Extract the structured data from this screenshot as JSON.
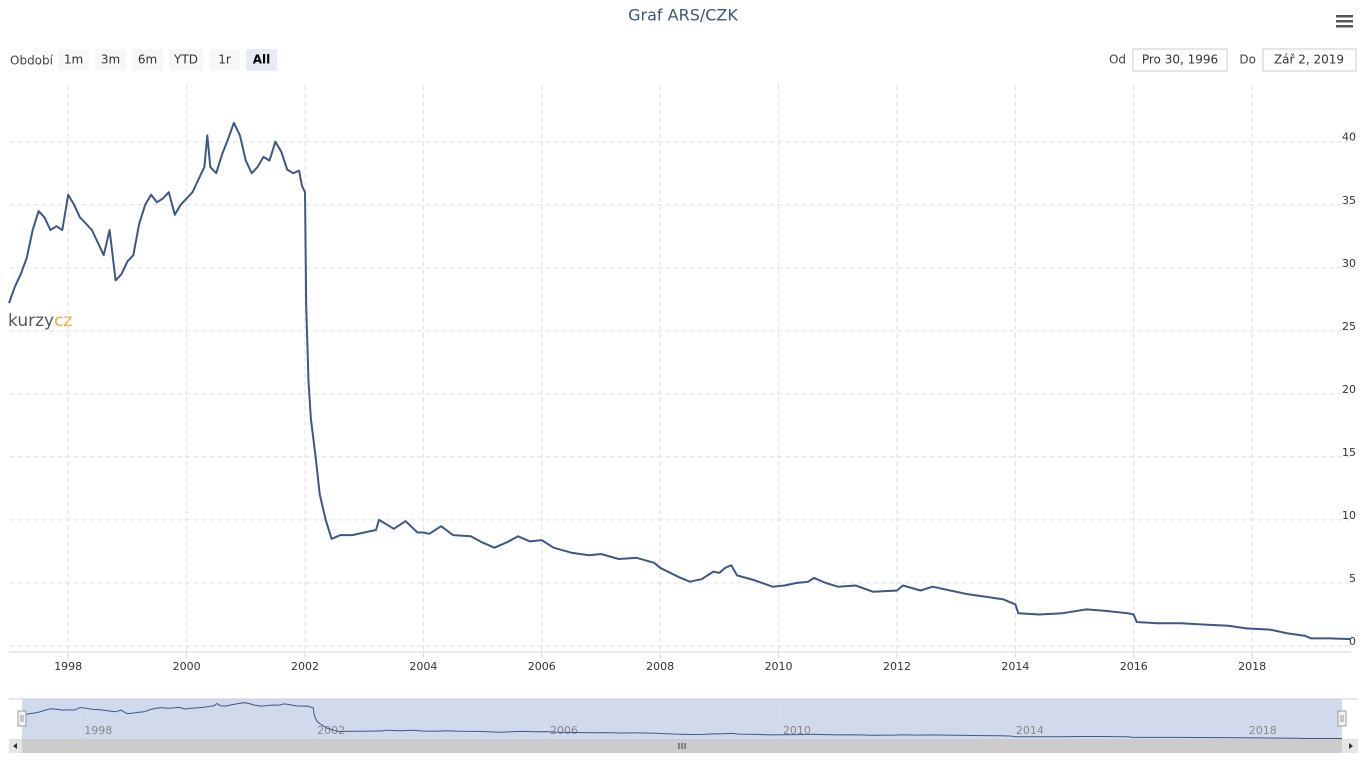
{
  "chart_data": {
    "type": "line",
    "title": "Graf ARS/CZK",
    "range_selector": {
      "label": "Období",
      "buttons": [
        "1m",
        "3m",
        "6m",
        "YTD",
        "1r",
        "All"
      ],
      "selected": 5
    },
    "date_inputs": {
      "from_label": "Od",
      "from": "Pro 30, 1996",
      "to_label": "Do",
      "to": "Zář 2, 2019"
    },
    "logo": {
      "part1": "kurzy",
      "part2": "cz"
    },
    "x": [
      1997.0,
      1997.1,
      1997.2,
      1997.3,
      1997.4,
      1997.5,
      1997.6,
      1997.7,
      1997.8,
      1997.9,
      1998.0,
      1998.1,
      1998.2,
      1998.3,
      1998.4,
      1998.5,
      1998.6,
      1998.7,
      1998.75,
      1998.8,
      1998.9,
      1999.0,
      1999.1,
      1999.2,
      1999.3,
      1999.4,
      1999.5,
      1999.6,
      1999.7,
      1999.8,
      1999.9,
      2000.0,
      2000.1,
      2000.2,
      2000.3,
      2000.35,
      2000.4,
      2000.5,
      2000.6,
      2000.7,
      2000.8,
      2000.9,
      2001.0,
      2001.1,
      2001.2,
      2001.3,
      2001.4,
      2001.5,
      2001.6,
      2001.7,
      2001.8,
      2001.9,
      2001.95,
      2002.0,
      2002.02,
      2002.06,
      2002.1,
      2002.18,
      2002.25,
      2002.35,
      2002.45,
      2002.6,
      2002.8,
      2003.0,
      2003.2,
      2003.25,
      2003.5,
      2003.7,
      2003.9,
      2004.0,
      2004.1,
      2004.3,
      2004.5,
      2004.8,
      2005.0,
      2005.2,
      2005.4,
      2005.6,
      2005.8,
      2006.0,
      2006.2,
      2006.5,
      2006.8,
      2007.0,
      2007.3,
      2007.6,
      2007.9,
      2008.0,
      2008.3,
      2008.5,
      2008.7,
      2008.9,
      2009.0,
      2009.1,
      2009.2,
      2009.3,
      2009.6,
      2009.9,
      2010.1,
      2010.3,
      2010.5,
      2010.6,
      2010.8,
      2011.0,
      2011.3,
      2011.6,
      2012.0,
      2012.1,
      2012.4,
      2012.6,
      2012.9,
      2013.2,
      2013.5,
      2013.8,
      2014.0,
      2014.05,
      2014.4,
      2014.8,
      2015.2,
      2015.5,
      2015.9,
      2016.0,
      2016.05,
      2016.4,
      2016.8,
      2017.2,
      2017.6,
      2017.9,
      2018.3,
      2018.6,
      2018.9,
      2019.0,
      2019.3,
      2019.67
    ],
    "series": [
      {
        "name": "ARS/CZK",
        "color": "#3f5787",
        "values": [
          27.2,
          28.5,
          29.5,
          30.8,
          33,
          34.5,
          34,
          33,
          33.3,
          33,
          35.8,
          35,
          34,
          33.5,
          33,
          32,
          31,
          33,
          31,
          29,
          29.5,
          30.5,
          31,
          33.5,
          35,
          35.8,
          35.2,
          35.5,
          36,
          34.2,
          35,
          35.5,
          36,
          37,
          38,
          40.5,
          38,
          37.5,
          39,
          40.2,
          41.5,
          40.5,
          38.5,
          37.5,
          38,
          38.8,
          38.5,
          40,
          39.2,
          37.8,
          37.5,
          37.7,
          36.5,
          36,
          27,
          21,
          18,
          15,
          12,
          10,
          8.5,
          8.8,
          8.8,
          9,
          9.2,
          10,
          9.3,
          9.9,
          9,
          9,
          8.9,
          9.5,
          8.8,
          8.7,
          8.2,
          7.8,
          8.2,
          8.7,
          8.3,
          8.4,
          7.8,
          7.4,
          7.2,
          7.3,
          6.9,
          7.0,
          6.6,
          6.2,
          5.5,
          5.1,
          5.3,
          5.9,
          5.8,
          6.2,
          6.4,
          5.6,
          5.2,
          4.7,
          4.8,
          5.0,
          5.1,
          5.4,
          5.0,
          4.7,
          4.8,
          4.3,
          4.4,
          4.8,
          4.4,
          4.7,
          4.4,
          4.1,
          3.9,
          3.7,
          3.3,
          2.6,
          2.5,
          2.6,
          2.9,
          2.8,
          2.6,
          2.5,
          1.9,
          1.8,
          1.8,
          1.7,
          1.6,
          1.4,
          1.3,
          1.0,
          0.8,
          0.6,
          0.6,
          0.55
        ]
      }
    ],
    "xlim": [
      1997.0,
      2019.67
    ],
    "xticks": [
      1998,
      2000,
      2002,
      2004,
      2006,
      2008,
      2010,
      2012,
      2014,
      2016,
      2018
    ],
    "ylim": [
      0,
      44.5
    ],
    "yticks": [
      0,
      5,
      10,
      15,
      20,
      25,
      30,
      35,
      40
    ],
    "grid": true,
    "navigator_xticks": [
      1998,
      2002,
      2006,
      2010,
      2014,
      2018
    ]
  }
}
